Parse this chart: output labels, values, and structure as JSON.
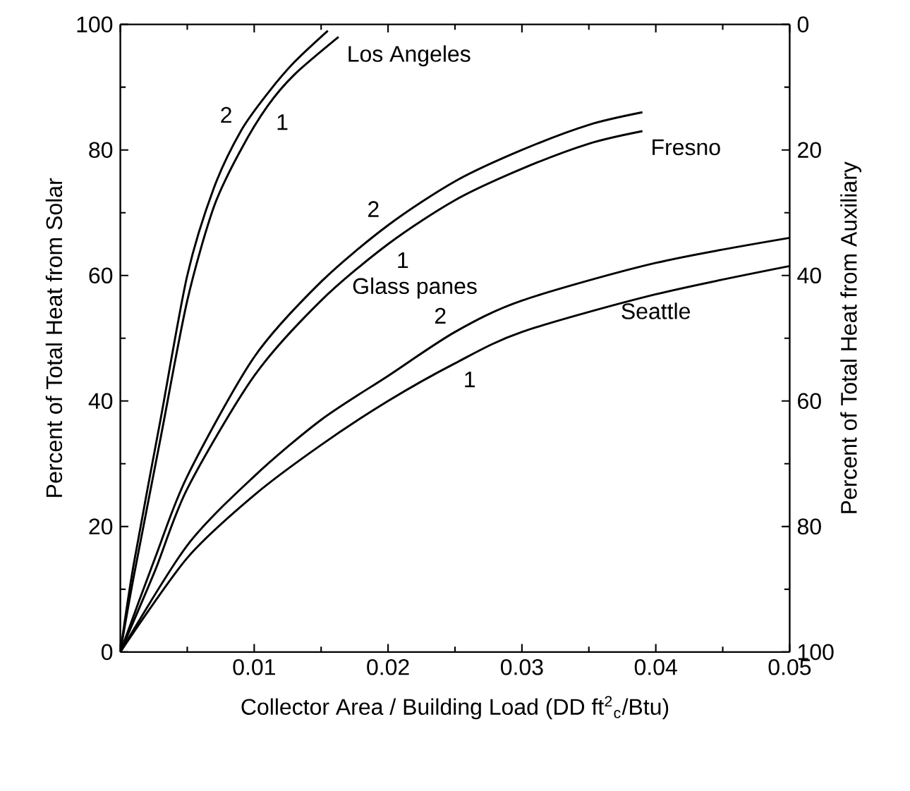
{
  "chart_data": {
    "type": "line",
    "xlabel": "Collector Area / Building Load  (DD ft$^{2}$$_{c}$/Btu)",
    "ylabel": "Percent of Total Heat from Solar",
    "y2label": "Percent of Total Heat from Auxiliary",
    "xlim": [
      0,
      0.05
    ],
    "ylim": [
      0,
      100
    ],
    "y2lim": [
      100,
      0
    ],
    "xticks": [
      {
        "value": 0,
        "label": null
      },
      0.01,
      0.02,
      0.03,
      0.04,
      0.05
    ],
    "yticks": [
      0,
      20,
      40,
      60,
      80,
      100
    ],
    "y2ticks": [
      0,
      20,
      40,
      60,
      80,
      100
    ],
    "grid": false,
    "marker": "none",
    "line_style": "solid",
    "series": [
      {
        "color": "#000000",
        "x": [
          0,
          0.001,
          0.003,
          0.005,
          0.007,
          0.009,
          0.011,
          0.013,
          0.0155
        ],
        "values": [
          0,
          14,
          37,
          60,
          74,
          83,
          89,
          94,
          99
        ]
      },
      {
        "color": "#000000",
        "x": [
          0,
          0.001,
          0.003,
          0.005,
          0.007,
          0.009,
          0.011,
          0.013,
          0.0163
        ],
        "values": [
          0,
          12,
          34,
          56,
          71,
          80,
          87,
          92,
          98
        ]
      },
      {
        "color": "#000000",
        "x": [
          0,
          0.0026,
          0.005,
          0.01,
          0.015,
          0.02,
          0.025,
          0.03,
          0.035,
          0.039
        ],
        "values": [
          0,
          15,
          28,
          47,
          59,
          68,
          75,
          80,
          84,
          86
        ]
      },
      {
        "color": "#000000",
        "x": [
          0,
          0.0026,
          0.005,
          0.01,
          0.015,
          0.02,
          0.025,
          0.03,
          0.035,
          0.039
        ],
        "values": [
          0,
          13,
          26,
          44,
          56,
          65,
          72,
          77,
          81,
          83
        ]
      },
      {
        "color": "#000000",
        "x": [
          0,
          0.005,
          0.01,
          0.015,
          0.02,
          0.025,
          0.03,
          0.04,
          0.05
        ],
        "values": [
          0,
          17,
          28,
          37,
          44,
          51,
          56,
          62,
          66
        ]
      },
      {
        "color": "#000000",
        "x": [
          0,
          0.005,
          0.01,
          0.015,
          0.02,
          0.025,
          0.03,
          0.04,
          0.05
        ],
        "values": [
          0,
          15,
          25,
          33,
          40,
          46,
          51,
          57,
          61.5
        ]
      }
    ],
    "annotations": [
      {
        "text": "Los Angeles",
        "x": 0.0163,
        "y": 98
      },
      {
        "text": "Fresno",
        "x": 0.039,
        "y": 83
      },
      {
        "text": "Seattle",
        "x": 0.04,
        "y": 57
      },
      "Glass panes",
      {
        "text": "2",
        "x": 0.009,
        "y": 83
      },
      {
        "text": "1",
        "x": 0.011,
        "y": 87
      },
      {
        "text": "2",
        "x": 0.02,
        "y": 68
      },
      {
        "text": "1",
        "x": 0.02,
        "y": 65
      },
      {
        "text": "2",
        "x": 0.025,
        "y": 51
      },
      {
        "text": "1",
        "x": 0.025,
        "y": 46
      }
    ]
  }
}
